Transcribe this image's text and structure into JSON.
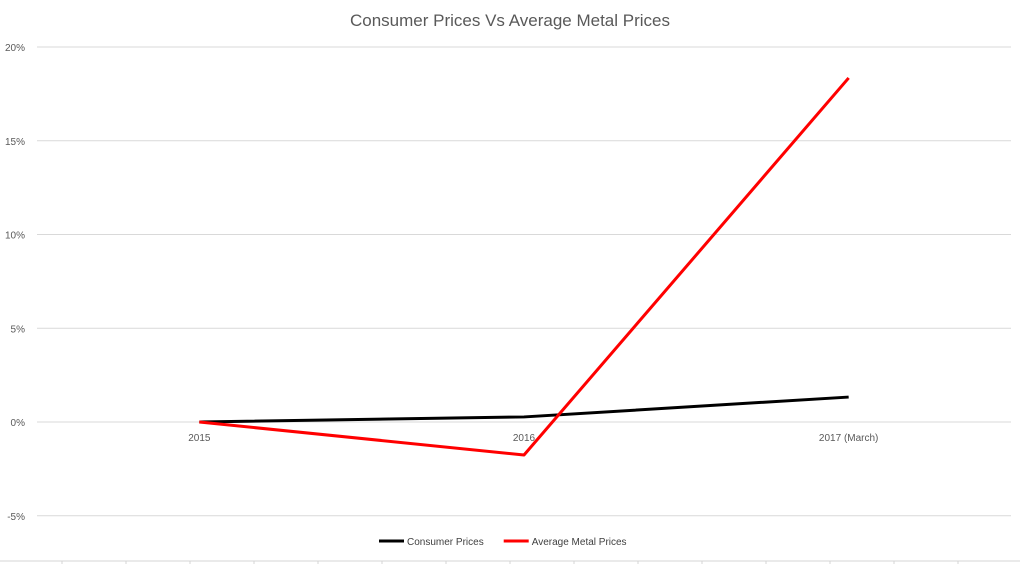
{
  "chart_data": {
    "type": "line",
    "title": "Consumer Prices Vs Average Metal Prices",
    "categories": [
      "2015",
      "2016",
      "2017 (March)"
    ],
    "series": [
      {
        "name": "Consumer Prices",
        "values": [
          0,
          0.27,
          1.33
        ],
        "color": "#000000"
      },
      {
        "name": "Average Metal Prices",
        "values": [
          0,
          -1.76,
          18.35
        ],
        "color": "#ff0000"
      }
    ],
    "ylim": [
      -5,
      20
    ],
    "yticks": [
      -5,
      0,
      5,
      10,
      15,
      20
    ],
    "ytick_labels": [
      "-5%",
      "0%",
      "5%",
      "10%",
      "15%",
      "20%"
    ],
    "grid": true,
    "legend": "bottom"
  }
}
